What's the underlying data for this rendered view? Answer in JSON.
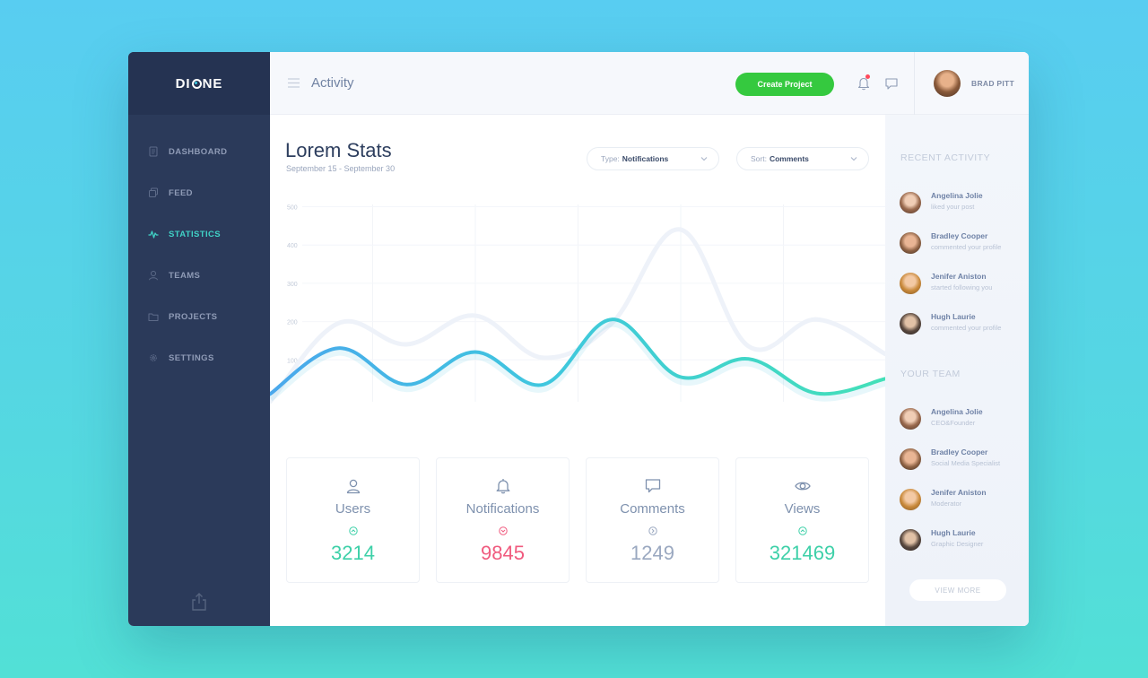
{
  "brand": {
    "name": "DIONE"
  },
  "sidebar": {
    "items": [
      {
        "label": "DASHBOARD",
        "icon": "document-icon",
        "active": false
      },
      {
        "label": "FEED",
        "icon": "copy-icon",
        "active": false
      },
      {
        "label": "STATISTICS",
        "icon": "activity-icon",
        "active": true
      },
      {
        "label": "TEAMS",
        "icon": "user-icon",
        "active": false
      },
      {
        "label": "PROJECTS",
        "icon": "folder-icon",
        "active": false
      },
      {
        "label": "SETTINGS",
        "icon": "gear-icon",
        "active": false
      }
    ],
    "footer_icon": "share-icon"
  },
  "header": {
    "title": "Activity",
    "create_label": "Create Project",
    "user_name": "BRAD PITT",
    "notification_dot_color": "#ff4a5c"
  },
  "main": {
    "title": "Lorem Stats",
    "date_range": "September 15 - September 30",
    "type_filter": {
      "label": "Type:",
      "value": "Notifications"
    },
    "sort_filter": {
      "label": "Sort:",
      "value": "Comments"
    }
  },
  "chart_data": {
    "type": "line",
    "yticks": [
      500,
      400,
      300,
      200,
      100
    ],
    "ylim": [
      0,
      520
    ],
    "grid": true,
    "series": [
      {
        "values": [
          20,
          140,
          45,
          130,
          45,
          215,
          65,
          112,
          22,
          60
        ]
      },
      {
        "values": [
          0,
          205,
          150,
          225,
          115,
          205,
          450,
          145,
          215,
          125
        ]
      }
    ]
  },
  "stats": [
    {
      "label": "Users",
      "icon": "user-icon",
      "value": "3214",
      "trend": "up",
      "color": "#3dd0a8"
    },
    {
      "label": "Notifications",
      "icon": "bell-icon",
      "value": "9845",
      "trend": "down",
      "color": "#f05a7e"
    },
    {
      "label": "Comments",
      "icon": "comment-icon",
      "value": "1249",
      "trend": "neutral",
      "color": "#9aa8c0"
    },
    {
      "label": "Views",
      "icon": "eye-icon",
      "value": "321469",
      "trend": "up",
      "color": "#3dd0a8"
    }
  ],
  "recent_activity": {
    "title": "RECENT ACTIVITY",
    "items": [
      {
        "name": "Angelina Jolie",
        "desc": "liked your post"
      },
      {
        "name": "Bradley Cooper",
        "desc": "commented your profile"
      },
      {
        "name": "Jenifer Aniston",
        "desc": "started following you"
      },
      {
        "name": "Hugh Laurie",
        "desc": "commented your profile"
      }
    ]
  },
  "team": {
    "title": "YOUR TEAM",
    "members": [
      {
        "name": "Angelina Jolie",
        "role": "CEO&Founder"
      },
      {
        "name": "Bradley Cooper",
        "role": "Social Media Specialist"
      },
      {
        "name": "Jenifer Aniston",
        "role": "Moderator"
      },
      {
        "name": "Hugh Laurie",
        "role": "Graphic Designer"
      }
    ],
    "view_more": "VIEW MORE"
  },
  "colors": {
    "accent_green": "#35c93f",
    "accent_teal": "#40d2c6",
    "sidebar_bg": "#2b3a5a"
  }
}
